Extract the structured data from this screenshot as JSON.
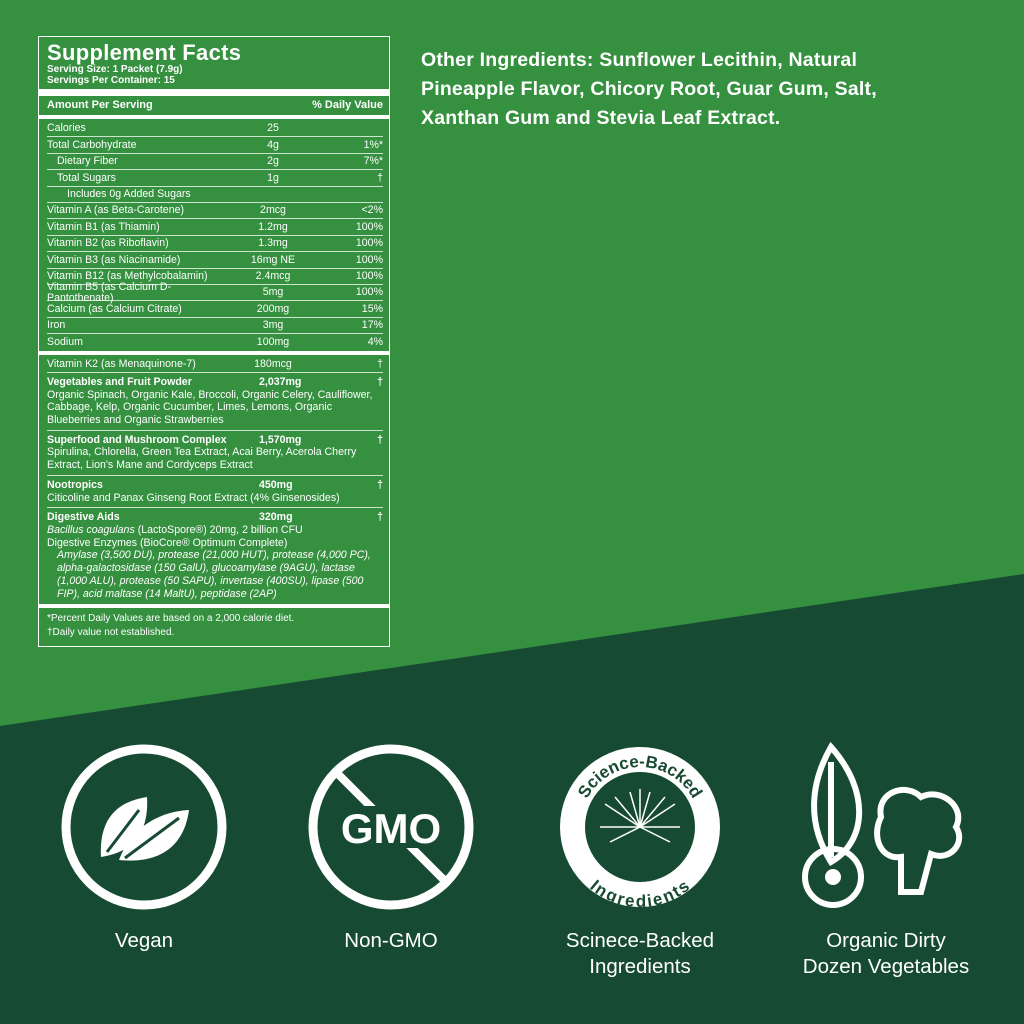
{
  "colors": {
    "top_bg": "#35903f",
    "bottom_bg": "#174a33",
    "text": "#ffffff"
  },
  "facts": {
    "title": "Supplement Facts",
    "serving_size": "Serving Size: 1 Packet (7.9g)",
    "servings_per_container": "Servings Per Container: 15",
    "header_amount": "Amount Per Serving",
    "header_dv": "% Daily Value",
    "rows": [
      {
        "name": "Calories",
        "amount": "25",
        "dv": ""
      },
      {
        "name": "Total Carbohydrate",
        "amount": "4g",
        "dv": "1%*"
      },
      {
        "name": "Dietary Fiber",
        "amount": "2g",
        "dv": "7%*"
      },
      {
        "name": "Total Sugars",
        "amount": "1g",
        "dv": "†"
      },
      {
        "name": "Includes 0g Added Sugars",
        "amount": "",
        "dv": ""
      },
      {
        "name": "Vitamin A (as Beta-Carotene)",
        "amount": "2mcg",
        "dv": "<2%"
      },
      {
        "name": "Vitamin B1 (as Thiamin)",
        "amount": "1.2mg",
        "dv": "100%"
      },
      {
        "name": "Vitamin B2 (as Riboflavin)",
        "amount": "1.3mg",
        "dv": "100%"
      },
      {
        "name": "Vitamin B3 (as Niacinamide)",
        "amount": "16mg NE",
        "dv": "100%"
      },
      {
        "name": "Vitamin B12 (as Methylcobalamin)",
        "amount": "2.4mcg",
        "dv": "100%"
      },
      {
        "name": "Vitamin B5 (as Calcium D-Pantothenate)",
        "amount": "5mg",
        "dv": "100%"
      },
      {
        "name": "Calcium (as Calcium Citrate)",
        "amount": "200mg",
        "dv": "15%"
      },
      {
        "name": "Iron",
        "amount": "3mg",
        "dv": "17%"
      },
      {
        "name": "Sodium",
        "amount": "100mg",
        "dv": "4%"
      }
    ],
    "k2": {
      "name": "Vitamin K2 (as Menaquinone-7)",
      "amount": "180mcg",
      "dv": "†"
    },
    "sections": [
      {
        "name": "Vegetables and Fruit Powder",
        "amount": "2,037mg",
        "dv": "†",
        "desc": "Organic Spinach, Organic Kale, Broccoli, Organic Celery, Cauliflower, Cabbage, Kelp, Organic Cucumber, Limes, Lemons, Organic Blueberries and Organic Strawberries"
      },
      {
        "name": "Superfood and Mushroom Complex",
        "amount": "1,570mg",
        "dv": "†",
        "desc": "Spirulina, Chlorella, Green Tea Extract, Acai Berry, Acerola Cherry Extract, Lion's Mane and Cordyceps Extract"
      },
      {
        "name": "Nootropics",
        "amount": "450mg",
        "dv": "†",
        "desc": "Citicoline and Panax Ginseng Root Extract (4% Ginsenosides)"
      }
    ],
    "digestive": {
      "name": "Digestive Aids",
      "amount": "320mg",
      "dv": "†",
      "probiotic_name": "Bacillus coagulans",
      "probiotic_detail": " (LactoSpore®) 20mg, 2 billion CFU",
      "enzymes_title": "Digestive Enzymes (BioCore® Optimum Complete)",
      "enzymes": "Amylase (3,500 DU), protease (21,000 HUT), protease (4,000 PC), alpha-galactosidase (150 GalU), glucoamylase (9AGU), lactase (1,000 ALU), protease (50 SAPU), invertase (400SU), lipase (500 FIP), acid maltase (14 MaltU), peptidase (2AP)"
    },
    "footnote1": "*Percent Daily Values are based on a 2,000 calorie diet.",
    "footnote2": "†Daily value not established."
  },
  "other_ingredients": "Other Ingredients: Sunflower Lecithin, Natural Pineapple Flavor, Chicory Root, Guar Gum, Salt, Xanthan Gum and Stevia Leaf Extract.",
  "badges": [
    {
      "icon": "leaf-icon",
      "label": "Vegan"
    },
    {
      "icon": "no-gmo-icon",
      "label": "Non-GMO",
      "icon_text": "GMO"
    },
    {
      "icon": "science-backed-seal-icon",
      "label": "Scinece-Backed Ingredients",
      "seal_text_top": "Science-Backed",
      "seal_text_bottom": "Ingredients"
    },
    {
      "icon": "vegetables-icon",
      "label": "Organic Dirty Dozen Vegetables"
    }
  ]
}
